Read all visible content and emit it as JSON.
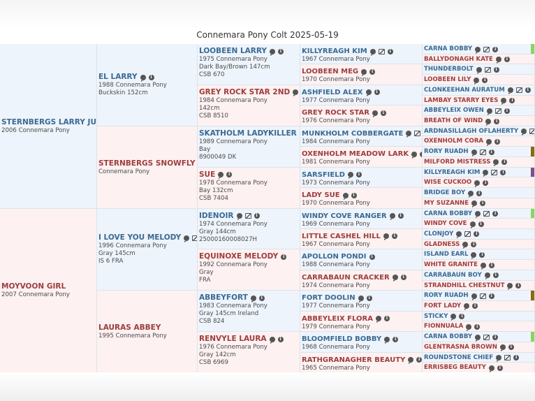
{
  "title": "Connemara Pony Colt 2025-05-19",
  "gen1": [
    {
      "name": "STERNBERGS LARRY JUNIOR",
      "lines": [
        "2006 Connemara Pony"
      ],
      "sex": "sire"
    },
    {
      "name": "MOYVOON GIRL",
      "lines": [
        "2007 Connemara Pony"
      ],
      "sex": "dam"
    }
  ],
  "gen2": [
    {
      "name": "EL LARRY",
      "lines": [
        "1988 Connemara Pony",
        "Buckskin 152cm"
      ],
      "sex": "sire",
      "icons": [
        "comment",
        "info"
      ]
    },
    {
      "name": "STERNBERGS SNOWFLY",
      "lines": [
        "Connemara Pony"
      ],
      "sex": "dam",
      "icons": []
    },
    {
      "name": "I LOVE YOU MELODY",
      "lines": [
        "1996 Connemara Pony",
        "Gray 145cm",
        "IS 6 FRA"
      ],
      "sex": "sire",
      "icons": [
        "comment",
        "photo",
        "info"
      ]
    },
    {
      "name": "LAURAS ABBEY",
      "lines": [
        "1995 Connemara Pony"
      ],
      "sex": "dam",
      "icons": []
    }
  ],
  "gen3": [
    {
      "name": "LOOBEEN LARRY",
      "lines": [
        "1975 Connemara Pony",
        "Dark Bay/Brown 147cm",
        "CSB 670"
      ],
      "sex": "sire",
      "icons": [
        "comment",
        "info"
      ]
    },
    {
      "name": "GREY ROCK STAR 2ND",
      "lines": [
        "1984 Connemara Pony",
        "142cm",
        "CSB 8510"
      ],
      "sex": "dam",
      "icons": [
        "comment",
        "info"
      ]
    },
    {
      "name": "SKATHOLM LADYKILLER",
      "lines": [
        "1989 Connemara Pony",
        "Bay",
        "8900049 DK"
      ],
      "sex": "sire",
      "icons": [
        "comment",
        "info"
      ]
    },
    {
      "name": "SUE",
      "lines": [
        "1978 Connemara Pony",
        "Bay 132cm",
        "CSB 7404"
      ],
      "sex": "dam",
      "icons": [
        "comment",
        "info"
      ]
    },
    {
      "name": "IDENOIR",
      "lines": [
        "1974 Connemara Pony",
        "Gray 144cm",
        "25000160008027H"
      ],
      "sex": "sire",
      "icons": [
        "comment",
        "photo",
        "info"
      ]
    },
    {
      "name": "EQUINOXE MELODY",
      "lines": [
        "1992 Connemara Pony",
        "Gray",
        "FRA"
      ],
      "sex": "dam",
      "icons": [
        "info"
      ]
    },
    {
      "name": "ABBEYFORT",
      "lines": [
        "1983 Connemara Pony",
        "Gray 145cm Ireland",
        "CSB 824"
      ],
      "sex": "sire",
      "icons": [
        "comment",
        "info"
      ]
    },
    {
      "name": "RENVYLE LAURA",
      "lines": [
        "1976 Connemara Pony",
        "Gray 142cm",
        "CSB 6969"
      ],
      "sex": "dam",
      "icons": [
        "comment",
        "info"
      ]
    }
  ],
  "gen4": [
    {
      "name": "KILLYREAGH KIM",
      "lines": [
        "1967 Connemara Pony"
      ],
      "sex": "sire",
      "icons": [
        "comment",
        "photo",
        "info"
      ]
    },
    {
      "name": "LOOBEEN MEG",
      "lines": [
        "1970 Connemara Pony"
      ],
      "sex": "dam",
      "icons": [
        "comment",
        "info"
      ]
    },
    {
      "name": "ASHFIELD ALEX",
      "lines": [
        "1977 Connemara Pony"
      ],
      "sex": "sire",
      "icons": [
        "comment",
        "info"
      ]
    },
    {
      "name": "GREY ROCK STAR",
      "lines": [
        "1976 Connemara Pony"
      ],
      "sex": "dam",
      "icons": [
        "comment",
        "info"
      ]
    },
    {
      "name": "MUNKHOLM COBBERGATE",
      "lines": [
        "1984 Connemara Pony"
      ],
      "sex": "sire",
      "icons": [
        "comment",
        "photo",
        "info"
      ]
    },
    {
      "name": "OXENHOLM MEADOW LARK",
      "lines": [
        "1981 Connemara Pony"
      ],
      "sex": "dam",
      "icons": [
        "comment",
        "info"
      ]
    },
    {
      "name": "SARSFIELD",
      "lines": [
        "1973 Connemara Pony"
      ],
      "sex": "sire",
      "icons": [
        "comment",
        "info"
      ]
    },
    {
      "name": "LADY SUE",
      "lines": [
        "1970 Connemara Pony"
      ],
      "sex": "dam",
      "icons": [
        "comment",
        "info"
      ]
    },
    {
      "name": "WINDY COVE RANGER",
      "lines": [
        "1969 Connemara Pony"
      ],
      "sex": "sire",
      "icons": [
        "comment",
        "info"
      ]
    },
    {
      "name": "LITTLE CASHEL HILL",
      "lines": [
        "1967 Connemara Pony"
      ],
      "sex": "dam",
      "icons": [
        "comment",
        "info"
      ]
    },
    {
      "name": "APOLLON PONDI",
      "lines": [
        "1988 Connemara Pony"
      ],
      "sex": "sire",
      "icons": [
        "info"
      ]
    },
    {
      "name": "CARRABAUN CRACKER",
      "lines": [
        "1974 Connemara Pony"
      ],
      "sex": "dam",
      "icons": [
        "comment",
        "info"
      ]
    },
    {
      "name": "FORT DOOLIN",
      "lines": [
        "1977 Connemara Pony"
      ],
      "sex": "sire",
      "icons": [
        "comment",
        "info"
      ]
    },
    {
      "name": "ABBEYLEIX FLORA",
      "lines": [
        "1979 Connemara Pony"
      ],
      "sex": "dam",
      "icons": [
        "comment",
        "info"
      ]
    },
    {
      "name": "BLOOMFIELD BOBBY",
      "lines": [
        "1968 Connemara Pony"
      ],
      "sex": "sire",
      "icons": [
        "comment",
        "info"
      ]
    },
    {
      "name": "RATHGRANAGHER BEAUTY",
      "lines": [
        "1965 Connemara Pony"
      ],
      "sex": "dam",
      "icons": [
        "comment",
        "info"
      ]
    }
  ],
  "gen5": [
    {
      "name": "CARNA BOBBY",
      "sex": "sire",
      "icons": [
        "comment",
        "photo",
        "info"
      ],
      "bar": "#8bd463"
    },
    {
      "name": "BALLYDONAGH KATE",
      "sex": "dam",
      "icons": [
        "comment",
        "info"
      ]
    },
    {
      "name": "THUNDERBOLT",
      "sex": "sire",
      "icons": [
        "comment",
        "photo",
        "info"
      ]
    },
    {
      "name": "LOOBEEN LILY",
      "sex": "dam",
      "icons": [
        "comment",
        "info"
      ]
    },
    {
      "name": "CLONKEEHAN AURATUM",
      "sex": "sire",
      "icons": [
        "comment",
        "photo",
        "info"
      ]
    },
    {
      "name": "LAMBAY STARRY EYES",
      "sex": "dam",
      "icons": [
        "comment",
        "info"
      ]
    },
    {
      "name": "ABBEYLEIX OWEN",
      "sex": "sire",
      "icons": [
        "comment",
        "photo",
        "info"
      ]
    },
    {
      "name": "BREATH OF WIND",
      "sex": "dam",
      "icons": [
        "comment",
        "info"
      ]
    },
    {
      "name": "ARDNASILLAGH OFLAHERTY",
      "sex": "sire",
      "icons": [
        "comment",
        "photo",
        "info"
      ]
    },
    {
      "name": "OXENHOLM CORA",
      "sex": "dam",
      "icons": [
        "comment",
        "info"
      ]
    },
    {
      "name": "RORY RUADH",
      "sex": "sire",
      "icons": [
        "comment",
        "photo",
        "info"
      ],
      "bar": "#8b6914"
    },
    {
      "name": "MILFORD MISTRESS",
      "sex": "dam",
      "icons": [
        "comment",
        "info"
      ]
    },
    {
      "name": "KILLYREAGH KIM",
      "sex": "sire",
      "icons": [
        "comment",
        "photo",
        "info"
      ],
      "bar": "#7a4f8f"
    },
    {
      "name": "WISE CUCKOO",
      "sex": "dam",
      "icons": [
        "comment",
        "info"
      ]
    },
    {
      "name": "BRIDGE BOY",
      "sex": "sire",
      "icons": [
        "comment",
        "info"
      ]
    },
    {
      "name": "MY SUZANNE",
      "sex": "dam",
      "icons": [
        "comment",
        "info"
      ]
    },
    {
      "name": "CARNA BOBBY",
      "sex": "sire",
      "icons": [
        "comment",
        "photo",
        "info"
      ],
      "bar": "#8bd463"
    },
    {
      "name": "WINDY COVE",
      "sex": "dam",
      "icons": [
        "comment",
        "info"
      ]
    },
    {
      "name": "CLONJOY",
      "sex": "sire",
      "icons": [
        "comment",
        "photo",
        "info"
      ]
    },
    {
      "name": "GLADNESS",
      "sex": "dam",
      "icons": [
        "comment",
        "info"
      ]
    },
    {
      "name": "ISLAND EARL",
      "sex": "sire",
      "icons": [
        "comment",
        "info"
      ]
    },
    {
      "name": "WHITE GRANITE",
      "sex": "dam",
      "icons": [
        "comment",
        "info"
      ]
    },
    {
      "name": "CARRABAUN BOY",
      "sex": "sire",
      "icons": [
        "comment",
        "info"
      ]
    },
    {
      "name": "STRANDHILL CHESTNUT",
      "sex": "dam",
      "icons": [
        "comment",
        "info"
      ]
    },
    {
      "name": "RORY RUADH",
      "sex": "sire",
      "icons": [
        "comment",
        "photo",
        "info"
      ],
      "bar": "#8b6914"
    },
    {
      "name": "FORT LADY",
      "sex": "dam",
      "icons": [
        "comment",
        "info"
      ]
    },
    {
      "name": "STICKY",
      "sex": "sire",
      "icons": [
        "comment",
        "info"
      ]
    },
    {
      "name": "FIONNUALA",
      "sex": "dam",
      "icons": [
        "comment",
        "info"
      ]
    },
    {
      "name": "CARNA BOBBY",
      "sex": "sire",
      "icons": [
        "comment",
        "photo",
        "info"
      ],
      "bar": "#8bd463"
    },
    {
      "name": "GLENTRASNA BROWN",
      "sex": "dam",
      "icons": [
        "comment",
        "info"
      ]
    },
    {
      "name": "ROUNDSTONE CHIEF",
      "sex": "sire",
      "icons": [
        "comment",
        "photo",
        "info"
      ]
    },
    {
      "name": "ERRISBEG BEAUTY",
      "sex": "dam",
      "icons": [
        "comment",
        "info"
      ]
    }
  ]
}
